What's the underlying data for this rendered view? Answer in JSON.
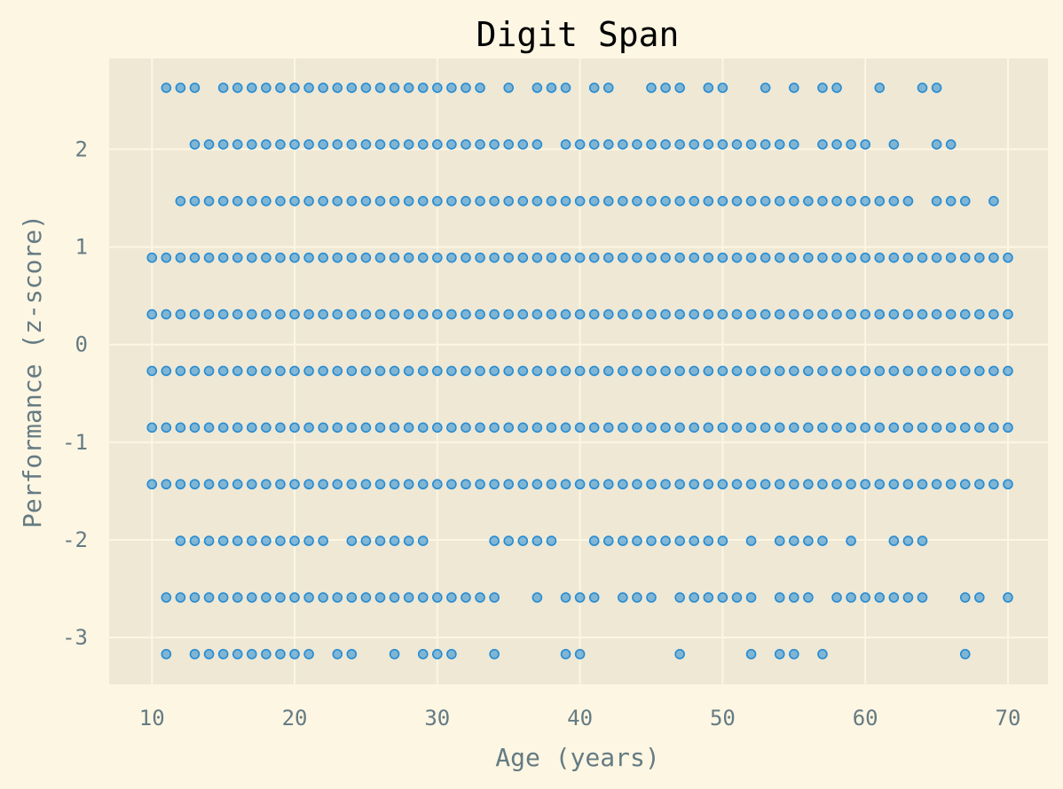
{
  "chart_data": {
    "type": "scatter",
    "title": "Digit Span",
    "xlabel": "Age (years)",
    "ylabel": "Performance (z-score)",
    "xlim": [
      7,
      72.8
    ],
    "ylim": [
      -3.48,
      2.93
    ],
    "xticks": [
      10,
      20,
      30,
      40,
      50,
      60,
      70
    ],
    "yticks": [
      -3,
      -2,
      -1,
      0,
      1,
      2
    ],
    "ytick_labels": [
      "-3",
      "-2",
      "-1",
      "0",
      "1",
      "2"
    ],
    "grid": true,
    "levels": [
      {
        "y": 2.63,
        "x": [
          11,
          12,
          13,
          15,
          16,
          17,
          18,
          19,
          20,
          21,
          22,
          23,
          24,
          25,
          26,
          27,
          28,
          29,
          30,
          31,
          32,
          33,
          35,
          37,
          38,
          39,
          41,
          42,
          45,
          46,
          47,
          49,
          50,
          53,
          55,
          57,
          58,
          61,
          64,
          65
        ]
      },
      {
        "y": 2.05,
        "x": [
          13,
          14,
          15,
          16,
          17,
          18,
          19,
          20,
          21,
          22,
          23,
          24,
          25,
          26,
          27,
          28,
          29,
          30,
          31,
          32,
          33,
          34,
          35,
          36,
          37,
          39,
          40,
          41,
          42,
          43,
          44,
          45,
          46,
          47,
          48,
          49,
          50,
          51,
          52,
          53,
          54,
          55,
          57,
          58,
          59,
          60,
          62,
          65,
          66
        ]
      },
      {
        "y": 1.47,
        "x": [
          12,
          13,
          14,
          15,
          16,
          17,
          18,
          19,
          20,
          21,
          22,
          23,
          24,
          25,
          26,
          27,
          28,
          29,
          30,
          31,
          32,
          33,
          34,
          35,
          36,
          37,
          38,
          39,
          40,
          41,
          42,
          43,
          44,
          45,
          46,
          47,
          48,
          49,
          50,
          51,
          52,
          53,
          54,
          55,
          56,
          57,
          58,
          59,
          60,
          61,
          62,
          63,
          65,
          66,
          67,
          69
        ]
      },
      {
        "y": 0.89,
        "x": [
          10,
          11,
          12,
          13,
          14,
          15,
          16,
          17,
          18,
          19,
          20,
          21,
          22,
          23,
          24,
          25,
          26,
          27,
          28,
          29,
          30,
          31,
          32,
          33,
          34,
          35,
          36,
          37,
          38,
          39,
          40,
          41,
          42,
          43,
          44,
          45,
          46,
          47,
          48,
          49,
          50,
          51,
          52,
          53,
          54,
          55,
          56,
          57,
          58,
          59,
          60,
          61,
          62,
          63,
          64,
          65,
          66,
          67,
          68,
          69,
          70
        ]
      },
      {
        "y": 0.31,
        "x": [
          10,
          11,
          12,
          13,
          14,
          15,
          16,
          17,
          18,
          19,
          20,
          21,
          22,
          23,
          24,
          25,
          26,
          27,
          28,
          29,
          30,
          31,
          32,
          33,
          34,
          35,
          36,
          37,
          38,
          39,
          40,
          41,
          42,
          43,
          44,
          45,
          46,
          47,
          48,
          49,
          50,
          51,
          52,
          53,
          54,
          55,
          56,
          57,
          58,
          59,
          60,
          61,
          62,
          63,
          64,
          65,
          66,
          67,
          68,
          69,
          70
        ]
      },
      {
        "y": -0.27,
        "x": [
          10,
          11,
          12,
          13,
          14,
          15,
          16,
          17,
          18,
          19,
          20,
          21,
          22,
          23,
          24,
          25,
          26,
          27,
          28,
          29,
          30,
          31,
          32,
          33,
          34,
          35,
          36,
          37,
          38,
          39,
          40,
          41,
          42,
          43,
          44,
          45,
          46,
          47,
          48,
          49,
          50,
          51,
          52,
          53,
          54,
          55,
          56,
          57,
          58,
          59,
          60,
          61,
          62,
          63,
          64,
          65,
          66,
          67,
          68,
          69,
          70
        ]
      },
      {
        "y": -0.85,
        "x": [
          10,
          11,
          12,
          13,
          14,
          15,
          16,
          17,
          18,
          19,
          20,
          21,
          22,
          23,
          24,
          25,
          26,
          27,
          28,
          29,
          30,
          31,
          32,
          33,
          34,
          35,
          36,
          37,
          38,
          39,
          40,
          41,
          42,
          43,
          44,
          45,
          46,
          47,
          48,
          49,
          50,
          51,
          52,
          53,
          54,
          55,
          56,
          57,
          58,
          59,
          60,
          61,
          62,
          63,
          64,
          65,
          66,
          67,
          68,
          69,
          70
        ]
      },
      {
        "y": -1.43,
        "x": [
          10,
          11,
          12,
          13,
          14,
          15,
          16,
          17,
          18,
          19,
          20,
          21,
          22,
          23,
          24,
          25,
          26,
          27,
          28,
          29,
          30,
          31,
          32,
          33,
          34,
          35,
          36,
          37,
          38,
          39,
          40,
          41,
          42,
          43,
          44,
          45,
          46,
          47,
          48,
          49,
          50,
          51,
          52,
          53,
          54,
          55,
          56,
          57,
          58,
          59,
          60,
          61,
          62,
          63,
          64,
          65,
          66,
          67,
          68,
          69,
          70
        ]
      },
      {
        "y": -2.01,
        "x": [
          12,
          13,
          14,
          15,
          16,
          17,
          18,
          19,
          20,
          21,
          22,
          24,
          25,
          26,
          27,
          28,
          29,
          34,
          35,
          36,
          37,
          38,
          41,
          42,
          43,
          44,
          45,
          46,
          47,
          48,
          49,
          50,
          52,
          54,
          55,
          56,
          57,
          59,
          62,
          63,
          64
        ]
      },
      {
        "y": -2.59,
        "x": [
          11,
          12,
          13,
          14,
          15,
          16,
          17,
          18,
          19,
          20,
          21,
          22,
          23,
          24,
          25,
          26,
          27,
          28,
          29,
          30,
          31,
          32,
          33,
          34,
          37,
          39,
          40,
          41,
          43,
          44,
          45,
          47,
          48,
          49,
          50,
          51,
          52,
          54,
          55,
          56,
          58,
          59,
          60,
          61,
          62,
          63,
          64,
          67,
          68,
          70
        ]
      },
      {
        "y": -3.17,
        "x": [
          11,
          13,
          14,
          15,
          16,
          17,
          18,
          19,
          20,
          21,
          23,
          24,
          27,
          29,
          30,
          31,
          34,
          39,
          40,
          47,
          52,
          54,
          55,
          57,
          67
        ]
      }
    ],
    "marker_color": "#268bd2"
  }
}
